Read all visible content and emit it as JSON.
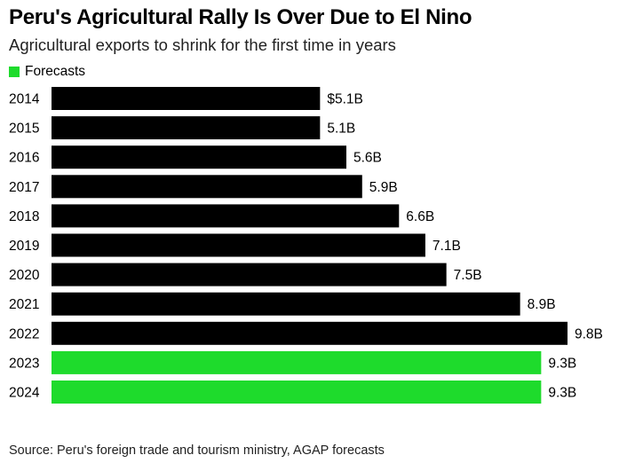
{
  "chart_data": {
    "type": "bar",
    "orientation": "horizontal",
    "title": "Peru's Agricultural Rally Is Over Due to El Nino",
    "subtitle": "Agricultural exports to shrink for the first time in years",
    "legend": [
      {
        "label": "Forecasts",
        "color": "#1edb2c"
      }
    ],
    "categories": [
      "2014",
      "2015",
      "2016",
      "2017",
      "2018",
      "2019",
      "2020",
      "2021",
      "2022",
      "2023",
      "2024"
    ],
    "values": [
      5.1,
      5.1,
      5.6,
      5.9,
      6.6,
      7.1,
      7.5,
      8.9,
      9.8,
      9.3,
      9.3
    ],
    "value_labels": [
      "$5.1B",
      "5.1B",
      "5.6B",
      "5.9B",
      "6.6B",
      "7.1B",
      "7.5B",
      "8.9B",
      "9.8B",
      "9.3B",
      "9.3B"
    ],
    "forecast": [
      false,
      false,
      false,
      false,
      false,
      false,
      false,
      false,
      false,
      true,
      true
    ],
    "colors": {
      "actual": "#000000",
      "forecast": "#1edb2c"
    },
    "xlim": [
      0,
      9.8
    ],
    "grid": false,
    "source": "Source: Peru's foreign trade and tourism ministry, AGAP forecasts"
  }
}
